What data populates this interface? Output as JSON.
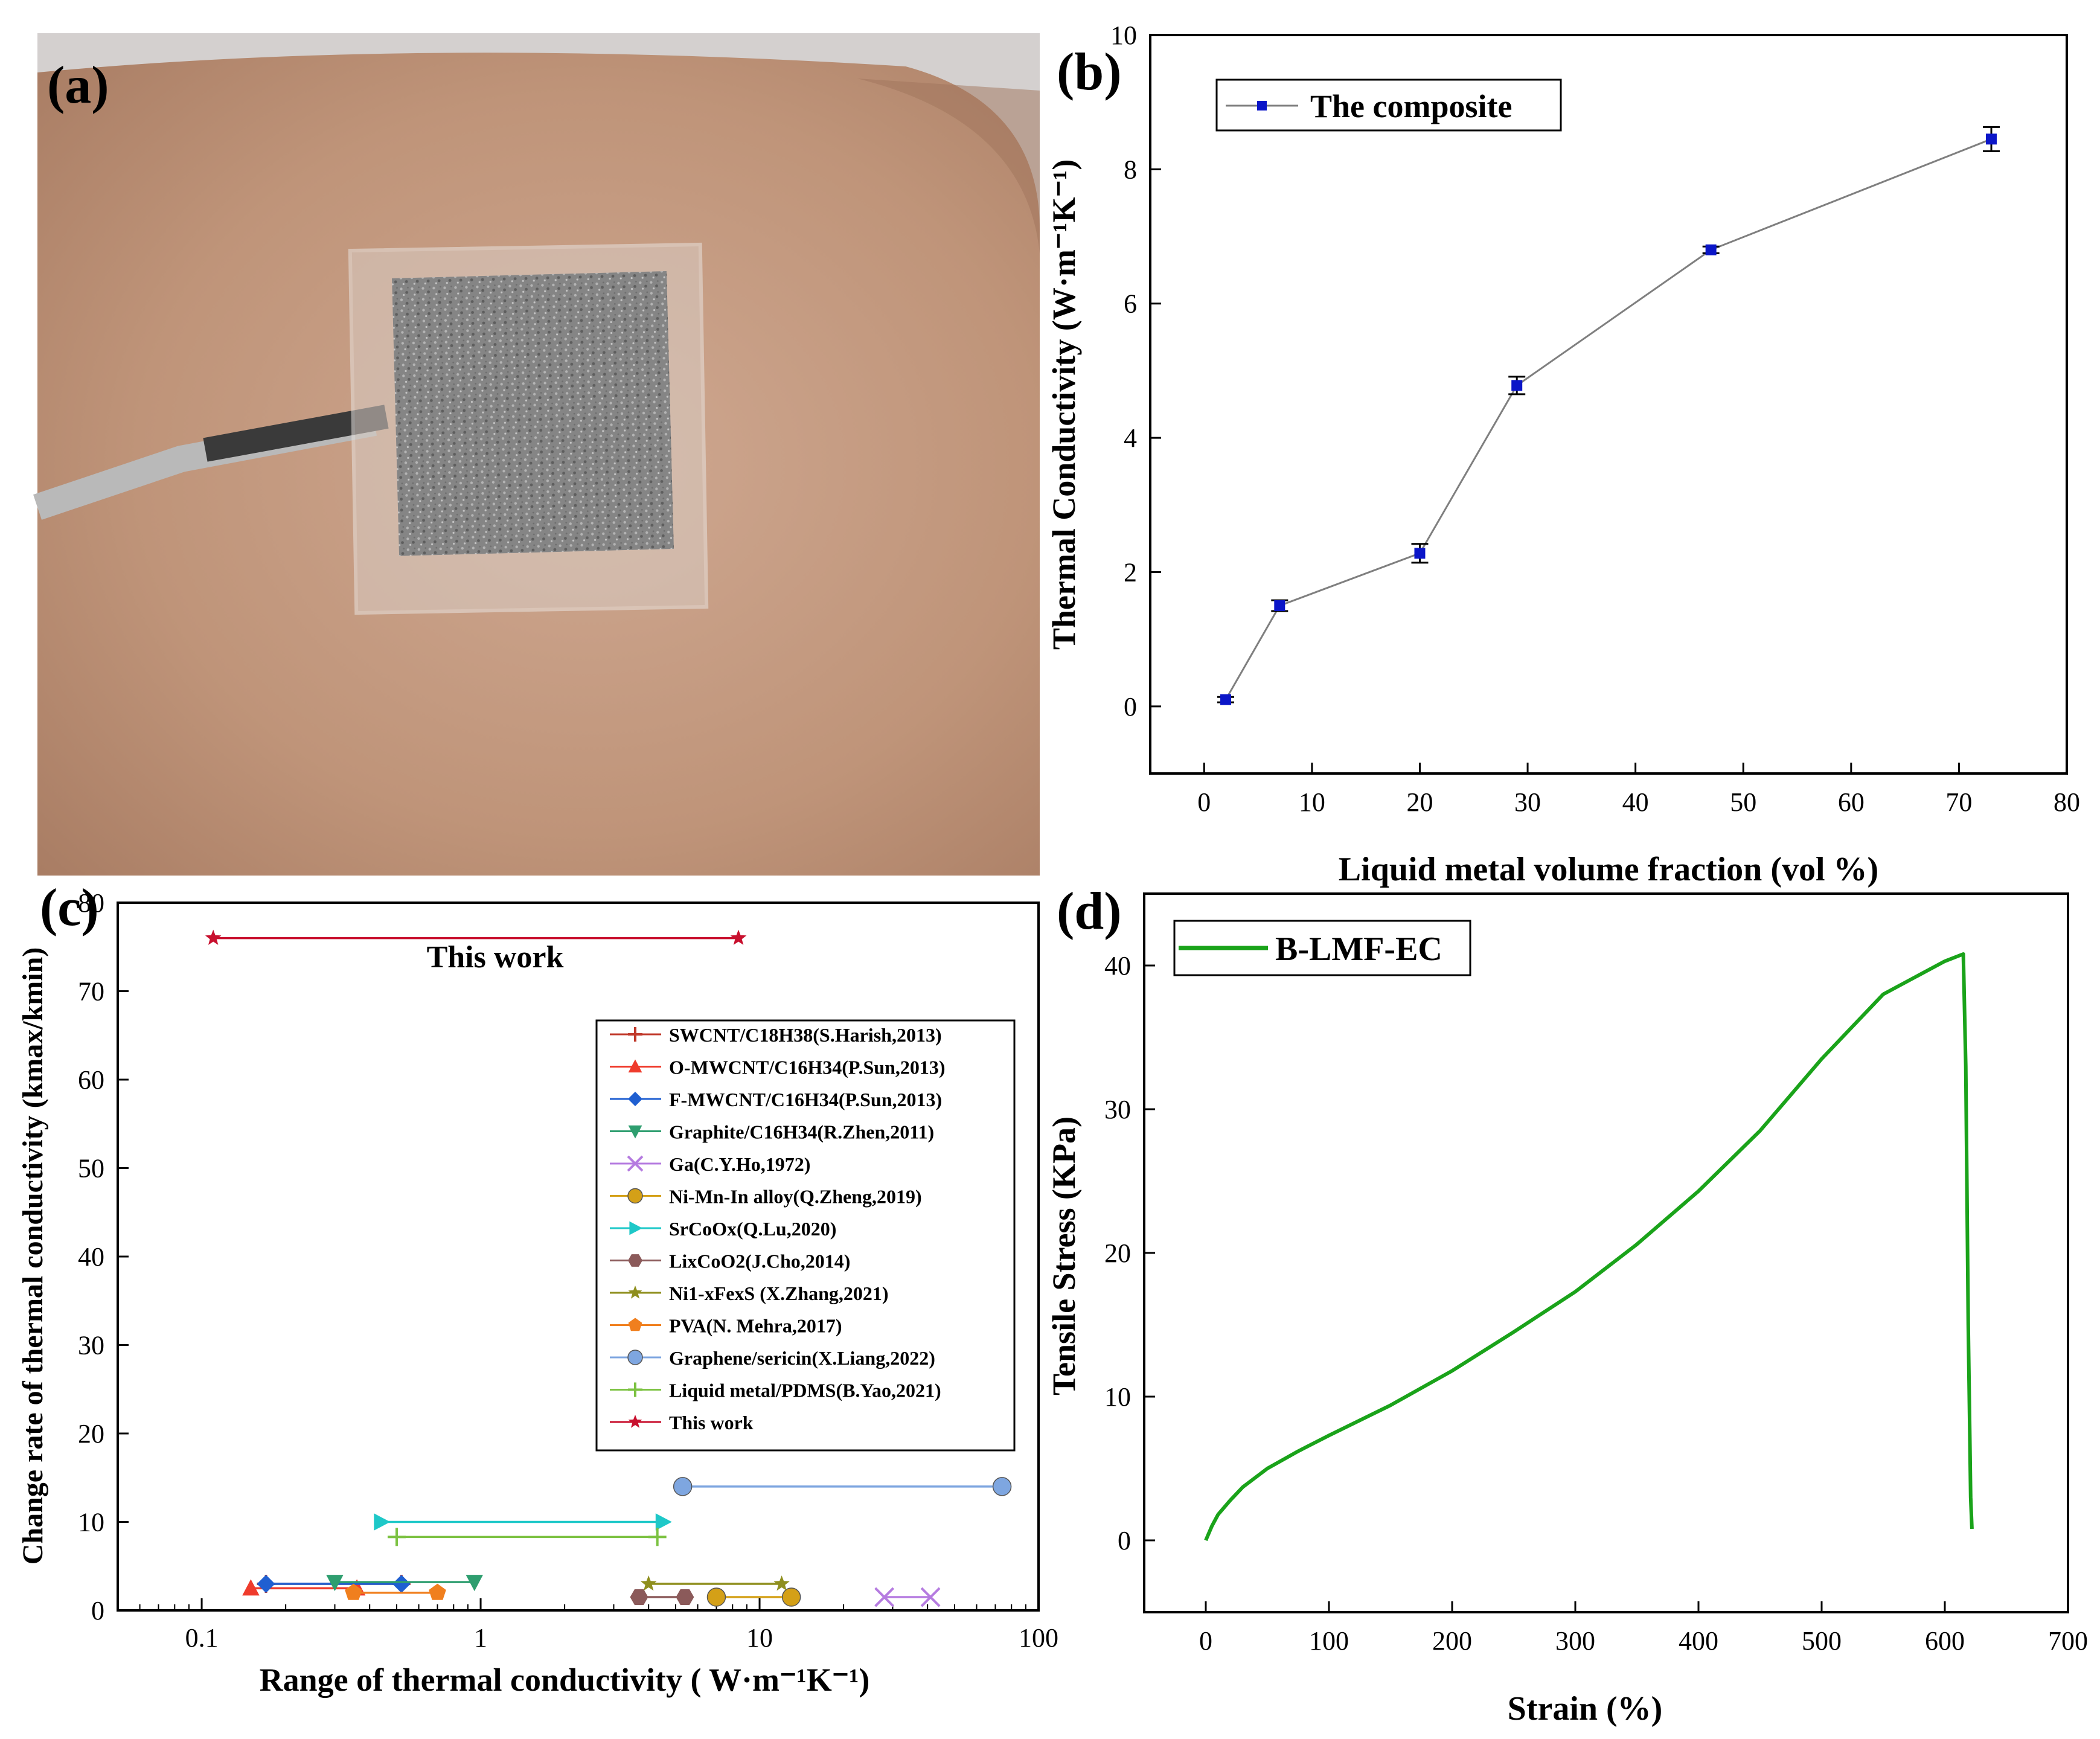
{
  "panels": {
    "a": {
      "label": "(a)"
    },
    "b": {
      "label": "(b)"
    },
    "c": {
      "label": "(c)"
    },
    "d": {
      "label": "(d)"
    }
  },
  "colors": {
    "blue_marker": "#0b16c8",
    "line_gray": "#7f7f7f",
    "green_curve": "#1aa31a",
    "this_work": "#c8102e",
    "skin_base": "#c9a38c",
    "device_gray": "#8c8c8c"
  },
  "photo_a": {
    "description_icon": "skin-patch-device-photo"
  },
  "chart_data": [
    {
      "panel": "b",
      "type": "line",
      "xlabel": "Liquid metal volume fraction (vol %)",
      "ylabel": "Thermal Conductivity (W·m⁻¹K⁻¹)",
      "xlim": [
        -5,
        80
      ],
      "ylim": [
        -1,
        10
      ],
      "xticks": [
        0,
        10,
        20,
        30,
        40,
        50,
        60,
        70,
        80
      ],
      "yticks": [
        0,
        2,
        4,
        6,
        8,
        10
      ],
      "legend": {
        "placement": "top-left",
        "label": "The composite"
      },
      "series": [
        {
          "name": "The composite",
          "x": [
            2,
            7,
            20,
            29,
            47,
            73
          ],
          "y": [
            0.1,
            1.5,
            2.28,
            4.78,
            6.8,
            8.45
          ],
          "err": [
            0.04,
            0.08,
            0.14,
            0.13,
            0.05,
            0.18
          ]
        }
      ]
    },
    {
      "panel": "c",
      "type": "scatter",
      "xscale": "log",
      "xlabel": "Range of thermal conductivity ( W·m⁻¹K⁻¹)",
      "ylabel": "Change rate of thermal conductivity (kmax/kmin)",
      "xlim": [
        0.05,
        100
      ],
      "ylim": [
        0,
        80
      ],
      "xticks": [
        0.1,
        1,
        10,
        100
      ],
      "xtick_labels": [
        "0.1",
        "1",
        "10",
        "100"
      ],
      "yticks": [
        0,
        10,
        20,
        30,
        40,
        50,
        60,
        70,
        80
      ],
      "annotation": "This work",
      "legend_placement": "right",
      "series": [
        {
          "name": "SWCNT/C18H38(S.Harish,2013)",
          "marker": "plus",
          "color": "#c0392b",
          "x": [
            0.17,
            0.52
          ],
          "y": [
            3.0,
            3.0
          ]
        },
        {
          "name": "O-MWCNT/C16H34(P.Sun,2013)",
          "marker": "triangle-up",
          "color": "#ef3b2c",
          "x": [
            0.15,
            0.36
          ],
          "y": [
            2.5,
            2.5
          ]
        },
        {
          "name": "F-MWCNT/C16H34(P.Sun,2013)",
          "marker": "diamond",
          "color": "#1f5fd1",
          "x": [
            0.17,
            0.52
          ],
          "y": [
            3.0,
            3.0
          ]
        },
        {
          "name": "Graphite/C16H34(R.Zhen,2011)",
          "marker": "triangle-down",
          "color": "#2e9e6f",
          "x": [
            0.3,
            0.95
          ],
          "y": [
            3.2,
            3.2
          ]
        },
        {
          "name": "Ga(C.Y.Ho,1972)",
          "marker": "x",
          "color": "#b57be0",
          "x": [
            28,
            41
          ],
          "y": [
            1.5,
            1.5
          ]
        },
        {
          "name": "Ni-Mn-In alloy(Q.Zheng,2019)",
          "marker": "circle",
          "color": "#d4a017",
          "x": [
            7,
            13
          ],
          "y": [
            1.5,
            1.5
          ]
        },
        {
          "name": "SrCoOx(Q.Lu,2020)",
          "marker": "triangle-right",
          "color": "#1ec8c8",
          "x": [
            0.44,
            4.5
          ],
          "y": [
            10.0,
            10.0
          ]
        },
        {
          "name": "LixCoO2(J.Cho,2014)",
          "marker": "hexagon",
          "color": "#8b5a5a",
          "x": [
            3.7,
            5.4
          ],
          "y": [
            1.5,
            1.5
          ]
        },
        {
          "name": "Ni1-xFexS (X.Zhang,2021)",
          "marker": "star",
          "color": "#8f8f1e",
          "x": [
            4.0,
            12.0
          ],
          "y": [
            3.0,
            3.0
          ]
        },
        {
          "name": "PVA(N. Mehra,2017)",
          "marker": "pentagon",
          "color": "#f07f1e",
          "x": [
            0.35,
            0.7
          ],
          "y": [
            2.0,
            2.0
          ]
        },
        {
          "name": "Graphene/sericin(X.Liang,2022)",
          "marker": "circle",
          "color": "#7ea6e0",
          "x": [
            5.3,
            74
          ],
          "y": [
            14.0,
            14.0
          ]
        },
        {
          "name": "Liquid metal/PDMS(B.Yao,2021)",
          "marker": "plus",
          "color": "#7cc242",
          "x": [
            0.5,
            4.3
          ],
          "y": [
            8.3,
            8.3
          ]
        },
        {
          "name": "This work",
          "marker": "star",
          "color": "#c8102e",
          "x": [
            0.11,
            8.4
          ],
          "y": [
            76.0,
            76.0
          ]
        }
      ]
    },
    {
      "panel": "d",
      "type": "line",
      "xlabel": "Strain (%)",
      "ylabel": "Tensile Stress (KPa)",
      "xlim": [
        -50,
        700
      ],
      "ylim": [
        -5,
        45
      ],
      "xticks": [
        0,
        100,
        200,
        300,
        400,
        500,
        600,
        700
      ],
      "yticks": [
        0,
        10,
        20,
        30,
        40
      ],
      "legend": {
        "placement": "top-left",
        "label": "B-LMF-EC"
      },
      "series": [
        {
          "name": "B-LMF-EC",
          "x": [
            0,
            5,
            10,
            20,
            30,
            50,
            75,
            100,
            150,
            200,
            250,
            300,
            350,
            400,
            450,
            500,
            550,
            600,
            615,
            617,
            619,
            621,
            622
          ],
          "y": [
            0,
            1.0,
            1.8,
            2.8,
            3.7,
            5.0,
            6.2,
            7.3,
            9.4,
            11.8,
            14.5,
            17.3,
            20.6,
            24.3,
            28.5,
            33.5,
            38.0,
            40.3,
            40.8,
            33.0,
            15.0,
            3.0,
            0.8
          ]
        }
      ]
    }
  ]
}
